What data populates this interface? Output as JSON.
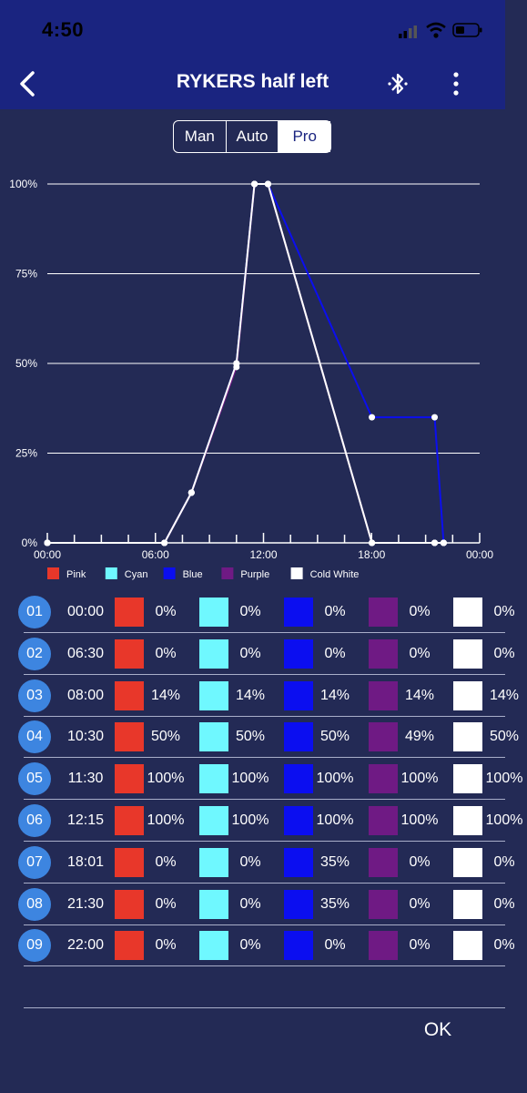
{
  "status": {
    "time": "4:50"
  },
  "header": {
    "title": "RYKERS half left"
  },
  "tabs": [
    {
      "label": "Man",
      "active": false
    },
    {
      "label": "Auto",
      "active": false
    },
    {
      "label": "Pro",
      "active": true
    }
  ],
  "chart_data": {
    "type": "line",
    "x_tick_labels": [
      "00:00",
      "06:00",
      "12:00",
      "18:00",
      "00:00"
    ],
    "y_tick_labels": [
      "0%",
      "25%",
      "50%",
      "75%",
      "100%"
    ],
    "xlim_hours": [
      0,
      24
    ],
    "ylim": [
      0,
      100
    ],
    "grid": true,
    "legend_position": "bottom",
    "x": [
      0,
      6.5,
      8,
      10.5,
      11.5,
      12.25,
      18.0167,
      21.5,
      22
    ],
    "series": [
      {
        "name": "Pink",
        "color": "#e8372a",
        "values": [
          0,
          0,
          14,
          50,
          100,
          100,
          0,
          0,
          0
        ]
      },
      {
        "name": "Cyan",
        "color": "#6ff8ff",
        "values": [
          0,
          0,
          14,
          50,
          100,
          100,
          0,
          0,
          0
        ]
      },
      {
        "name": "Blue",
        "color": "#0b0ef0",
        "values": [
          0,
          0,
          14,
          50,
          100,
          100,
          35,
          35,
          0
        ]
      },
      {
        "name": "Purple",
        "color": "#6f1a84",
        "values": [
          0,
          0,
          14,
          49,
          100,
          100,
          0,
          0,
          0
        ]
      },
      {
        "name": "Cold White",
        "color": "#ffffff",
        "values": [
          0,
          0,
          14,
          50,
          100,
          100,
          0,
          0,
          0
        ]
      }
    ]
  },
  "points": [
    {
      "index": "01",
      "time": "00:00",
      "values": [
        "0%",
        "0%",
        "0%",
        "0%",
        "0%"
      ]
    },
    {
      "index": "02",
      "time": "06:30",
      "values": [
        "0%",
        "0%",
        "0%",
        "0%",
        "0%"
      ]
    },
    {
      "index": "03",
      "time": "08:00",
      "values": [
        "14%",
        "14%",
        "14%",
        "14%",
        "14%"
      ]
    },
    {
      "index": "04",
      "time": "10:30",
      "values": [
        "50%",
        "50%",
        "50%",
        "49%",
        "50%"
      ]
    },
    {
      "index": "05",
      "time": "11:30",
      "values": [
        "100%",
        "100%",
        "100%",
        "100%",
        "100%"
      ]
    },
    {
      "index": "06",
      "time": "12:15",
      "values": [
        "100%",
        "100%",
        "100%",
        "100%",
        "100%"
      ]
    },
    {
      "index": "07",
      "time": "18:01",
      "values": [
        "0%",
        "0%",
        "35%",
        "0%",
        "0%"
      ]
    },
    {
      "index": "08",
      "time": "21:30",
      "values": [
        "0%",
        "0%",
        "35%",
        "0%",
        "0%"
      ]
    },
    {
      "index": "09",
      "time": "22:00",
      "values": [
        "0%",
        "0%",
        "0%",
        "0%",
        "0%"
      ]
    }
  ],
  "footer": {
    "ok_label": "OK"
  },
  "icons": {
    "back": "chevron-left-icon",
    "bluetooth": "bluetooth-icon",
    "more": "more-vertical-icon",
    "signal": "cellular-signal-icon",
    "wifi": "wifi-icon",
    "battery": "battery-icon"
  },
  "colors": {
    "header": "#1a2480",
    "background": "#232a55",
    "index_badge": "#3d85e0"
  }
}
